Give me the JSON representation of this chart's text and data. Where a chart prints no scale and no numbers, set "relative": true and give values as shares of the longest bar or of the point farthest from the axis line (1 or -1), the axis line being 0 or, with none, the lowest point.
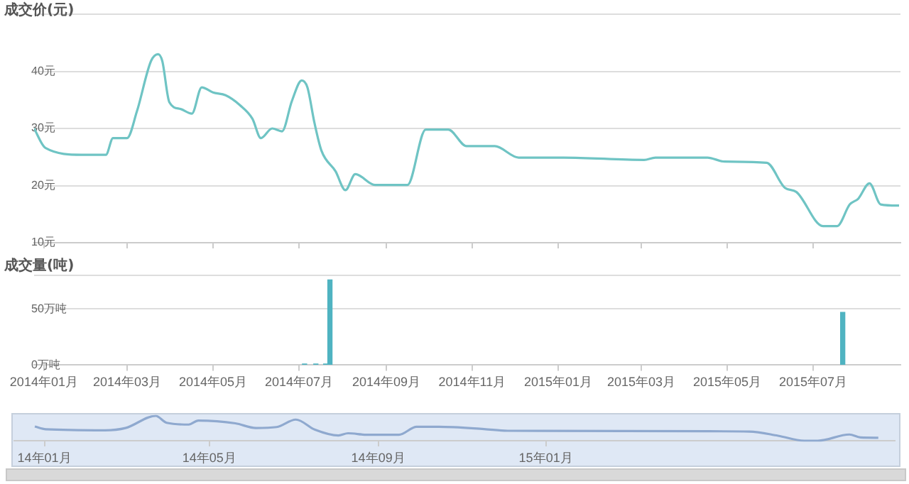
{
  "chart_data": [
    {
      "type": "line",
      "ylabel": "成交价(元)",
      "color": "#6fc4c4",
      "tick_labels": "y",
      "grid": "y",
      "marker": "none",
      "xlim": [
        "2013-12-25",
        "2015-09-01"
      ],
      "ylim": [
        10,
        50
      ],
      "xticks": [
        {
          "value": "2014-01",
          "label": null
        },
        {
          "value": "2014-03",
          "label": null
        },
        {
          "value": "2014-05",
          "label": null
        },
        {
          "value": "2014-07",
          "label": null
        },
        {
          "value": "2014-09",
          "label": null
        },
        {
          "value": "2014-11",
          "label": null
        },
        {
          "value": "2015-01",
          "label": null
        },
        {
          "value": "2015-03",
          "label": null
        },
        {
          "value": "2015-05",
          "label": null
        },
        {
          "value": "2015-07",
          "label": null
        }
      ],
      "yticks": [
        {
          "value": 10,
          "label": "10元"
        },
        {
          "value": 20,
          "label": "20元"
        },
        {
          "value": 30,
          "label": "30元"
        },
        {
          "value": 40,
          "label": "40元"
        },
        {
          "value": 50,
          "label": null
        }
      ],
      "x": [
        "2013-12-25",
        "2014-01-02",
        "2014-01-28",
        "2014-02-14",
        "2014-02-19",
        "2014-03-01",
        "2014-03-08",
        "2014-03-18",
        "2014-03-23",
        "2014-03-26",
        "2014-03-31",
        "2014-04-08",
        "2014-04-16",
        "2014-04-23",
        "2014-05-01",
        "2014-05-10",
        "2014-05-20",
        "2014-05-29",
        "2014-06-04",
        "2014-06-12",
        "2014-06-19",
        "2014-06-26",
        "2014-07-03",
        "2014-07-07",
        "2014-07-12",
        "2014-07-17",
        "2014-07-27",
        "2014-08-03",
        "2014-08-10",
        "2014-08-24",
        "2014-09-16",
        "2014-09-29",
        "2014-10-15",
        "2014-10-28",
        "2014-11-17",
        "2014-12-04",
        "2015-01-05",
        "2015-03-03",
        "2015-03-11",
        "2015-04-17",
        "2015-04-29",
        "2015-05-29",
        "2015-06-11",
        "2015-06-19",
        "2015-07-08",
        "2015-07-18",
        "2015-07-27",
        "2015-08-02",
        "2015-08-10",
        "2015-08-18",
        "2015-08-31"
      ],
      "values": [
        30.0,
        26.6,
        25.4,
        25.4,
        28.3,
        28.3,
        33.0,
        41.8,
        43.0,
        41.8,
        34.6,
        33.4,
        32.6,
        37.2,
        36.3,
        35.8,
        34.1,
        31.7,
        28.3,
        30.0,
        29.5,
        34.8,
        38.4,
        37.2,
        31.0,
        26.1,
        22.5,
        19.2,
        22.0,
        20.1,
        20.1,
        29.8,
        29.8,
        26.9,
        26.9,
        24.9,
        24.9,
        24.5,
        24.9,
        24.9,
        24.2,
        24.0,
        19.6,
        18.9,
        12.9,
        12.9,
        16.7,
        17.7,
        20.4,
        16.7,
        16.5
      ]
    },
    {
      "type": "bar",
      "ylabel": "成交量(吨)",
      "color": "#4fb3c1",
      "grid": "y",
      "xlim": [
        "2013-12-25",
        "2015-09-01"
      ],
      "ylim": [
        0,
        80
      ],
      "yticks": [
        {
          "value": 0,
          "label": "0万吨"
        },
        {
          "value": 50,
          "label": "50万吨"
        },
        {
          "value": 80,
          "label": null
        }
      ],
      "xticks": [
        {
          "value": "2014-01",
          "label": "2014年01月"
        },
        {
          "value": "2014-03",
          "label": "2014年03月"
        },
        {
          "value": "2014-05",
          "label": "2014年05月"
        },
        {
          "value": "2014-07",
          "label": "2014年07月"
        },
        {
          "value": "2014-09",
          "label": "2014年09月"
        },
        {
          "value": "2014-11",
          "label": "2014年11月"
        },
        {
          "value": "2015-01",
          "label": "2015年01月"
        },
        {
          "value": "2015-03",
          "label": "2015年03月"
        },
        {
          "value": "2015-05",
          "label": "2015年05月"
        },
        {
          "value": "2015-07",
          "label": "2015年07月"
        }
      ],
      "x": [
        "2014-07-05",
        "2014-07-13",
        "2014-07-20",
        "2014-07-23",
        "2015-07-22"
      ],
      "values": [
        1,
        1,
        1,
        76,
        47
      ]
    },
    {
      "type": "line",
      "relative": true,
      "color": "#8fa9cf",
      "tick_labels": "x",
      "marker": "none",
      "xlim": [
        "2013-12-10",
        "2015-09-12"
      ],
      "xticks": [
        {
          "value": "2014-01",
          "label": "14年01月"
        },
        {
          "value": "2014-05",
          "label": "14年05月"
        },
        {
          "value": "2014-09",
          "label": "14年09月"
        },
        {
          "value": "2015-01",
          "label": "15年01月"
        }
      ],
      "x": [
        "2013-12-25",
        "2014-01-02",
        "2014-02-14",
        "2014-03-01",
        "2014-03-23",
        "2014-03-31",
        "2014-04-16",
        "2014-04-23",
        "2014-05-20",
        "2014-06-04",
        "2014-06-19",
        "2014-07-03",
        "2014-07-17",
        "2014-08-03",
        "2014-08-10",
        "2014-08-24",
        "2014-09-16",
        "2014-09-29",
        "2014-10-15",
        "2014-11-17",
        "2014-12-04",
        "2015-04-29",
        "2015-05-29",
        "2015-06-19",
        "2015-07-08",
        "2015-07-18",
        "2015-08-10",
        "2015-08-18",
        "2015-08-31"
      ],
      "values": [
        0.57,
        0.46,
        0.42,
        0.51,
        1,
        0.72,
        0.65,
        0.81,
        0.7,
        0.51,
        0.55,
        0.85,
        0.44,
        0.21,
        0.3,
        0.24,
        0.24,
        0.56,
        0.56,
        0.47,
        0.4,
        0.38,
        0.37,
        0.2,
        0,
        0,
        0.25,
        0.13,
        0.12
      ]
    }
  ]
}
